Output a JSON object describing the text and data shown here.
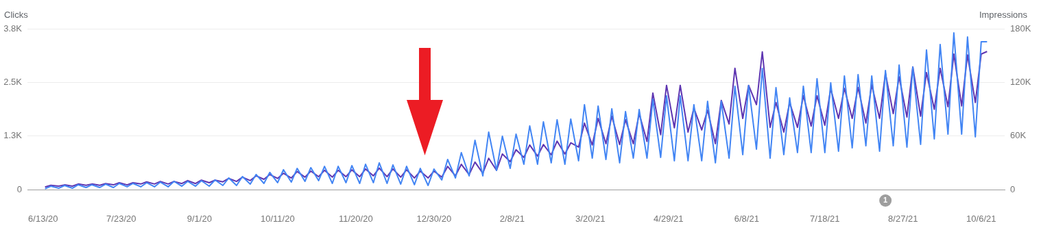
{
  "chart_data": {
    "type": "line",
    "ylabel": "Clicks",
    "y2label": "Impressions",
    "grid": "y",
    "legend": false,
    "x": [
      "2020-06-14",
      "2020-06-17",
      "2020-06-21",
      "2020-06-24",
      "2020-06-28",
      "2020-07-01",
      "2020-07-05",
      "2020-07-08",
      "2020-07-12",
      "2020-07-15",
      "2020-07-19",
      "2020-07-22",
      "2020-07-26",
      "2020-07-29",
      "2020-08-02",
      "2020-08-05",
      "2020-08-09",
      "2020-08-12",
      "2020-08-16",
      "2020-08-19",
      "2020-08-23",
      "2020-08-26",
      "2020-08-30",
      "2020-09-02",
      "2020-09-06",
      "2020-09-09",
      "2020-09-13",
      "2020-09-16",
      "2020-09-20",
      "2020-09-23",
      "2020-09-27",
      "2020-09-30",
      "2020-10-04",
      "2020-10-07",
      "2020-10-11",
      "2020-10-14",
      "2020-10-18",
      "2020-10-21",
      "2020-10-25",
      "2020-10-28",
      "2020-11-01",
      "2020-11-04",
      "2020-11-08",
      "2020-11-11",
      "2020-11-15",
      "2020-11-18",
      "2020-11-22",
      "2020-11-25",
      "2020-11-29",
      "2020-12-02",
      "2020-12-06",
      "2020-12-09",
      "2020-12-13",
      "2020-12-16",
      "2020-12-20",
      "2020-12-23",
      "2020-12-27",
      "2020-12-30",
      "2021-01-03",
      "2021-01-06",
      "2021-01-10",
      "2021-01-13",
      "2021-01-17",
      "2021-01-20",
      "2021-01-24",
      "2021-01-27",
      "2021-01-31",
      "2021-02-03",
      "2021-02-07",
      "2021-02-10",
      "2021-02-14",
      "2021-02-17",
      "2021-02-21",
      "2021-02-24",
      "2021-02-28",
      "2021-03-03",
      "2021-03-07",
      "2021-03-10",
      "2021-03-14",
      "2021-03-17",
      "2021-03-21",
      "2021-03-24",
      "2021-03-28",
      "2021-03-31",
      "2021-04-04",
      "2021-04-07",
      "2021-04-11",
      "2021-04-14",
      "2021-04-18",
      "2021-04-21",
      "2021-04-25",
      "2021-04-28",
      "2021-05-02",
      "2021-05-05",
      "2021-05-09",
      "2021-05-12",
      "2021-05-16",
      "2021-05-19",
      "2021-05-23",
      "2021-05-26",
      "2021-05-30",
      "2021-06-02",
      "2021-06-06",
      "2021-06-09",
      "2021-06-13",
      "2021-06-16",
      "2021-06-20",
      "2021-06-23",
      "2021-06-27",
      "2021-06-30",
      "2021-07-04",
      "2021-07-07",
      "2021-07-11",
      "2021-07-14",
      "2021-07-18",
      "2021-07-21",
      "2021-07-25",
      "2021-07-28",
      "2021-08-01",
      "2021-08-04",
      "2021-08-08",
      "2021-08-11",
      "2021-08-15",
      "2021-08-18",
      "2021-08-22",
      "2021-08-25",
      "2021-08-29",
      "2021-09-01",
      "2021-09-05",
      "2021-09-08",
      "2021-09-12",
      "2021-09-15",
      "2021-09-19",
      "2021-09-22",
      "2021-09-26",
      "2021-09-29",
      "2021-10-03",
      "2021-10-06",
      "2021-10-09"
    ],
    "xlim": [
      "2020-06-05",
      "2021-10-18"
    ],
    "xticks": [
      {
        "value": "2020-06-13",
        "label": "6/13/20"
      },
      {
        "value": "2020-07-23",
        "label": "7/23/20"
      },
      {
        "value": "2020-09-01",
        "label": "9/1/20"
      },
      {
        "value": "2020-10-11",
        "label": "10/11/20"
      },
      {
        "value": "2020-11-20",
        "label": "11/20/20"
      },
      {
        "value": "2020-12-30",
        "label": "12/30/20"
      },
      {
        "value": "2021-02-08",
        "label": "2/8/21"
      },
      {
        "value": "2021-03-20",
        "label": "3/20/21"
      },
      {
        "value": "2021-04-29",
        "label": "4/29/21"
      },
      {
        "value": "2021-06-08",
        "label": "6/8/21"
      },
      {
        "value": "2021-07-18",
        "label": "7/18/21"
      },
      {
        "value": "2021-08-27",
        "label": "8/27/21"
      },
      {
        "value": "2021-10-06",
        "label": "10/6/21"
      }
    ],
    "ylim": [
      0,
      3750
    ],
    "yticks": [
      0,
      {
        "value": 1250,
        "label": "1.3K"
      },
      {
        "value": 2500,
        "label": "2.5K"
      },
      {
        "value": 3750,
        "label": "3.8K"
      }
    ],
    "y2lim": [
      0,
      180000
    ],
    "y2ticks": [
      0,
      {
        "value": 60000,
        "label": "60K"
      },
      {
        "value": 120000,
        "label": "120K"
      },
      {
        "value": 180000,
        "label": "180K"
      }
    ],
    "series": [
      {
        "color": "#4285f4",
        "axis": "y2",
        "values": [
          800,
          3800,
          1500,
          4600,
          1500,
          5400,
          2300,
          5400,
          2300,
          6100,
          2300,
          6900,
          3100,
          6900,
          3100,
          7700,
          3100,
          8400,
          3100,
          9200,
          3800,
          9200,
          3800,
          10000,
          3800,
          10700,
          4600,
          13000,
          4600,
          14600,
          6100,
          16900,
          6900,
          19200,
          7700,
          22200,
          8400,
          23700,
          9200,
          24500,
          10000,
          26000,
          6900,
          26000,
          7700,
          26800,
          6900,
          28300,
          7700,
          29900,
          6900,
          27600,
          6100,
          26000,
          5400,
          23700,
          4600,
          23000,
          10700,
          33700,
          13000,
          41400,
          15300,
          55200,
          15300,
          64300,
          21400,
          59700,
          23700,
          62000,
          28300,
          71200,
          28300,
          75800,
          29900,
          78100,
          28300,
          78900,
          32200,
          95000,
          35200,
          93500,
          33700,
          90400,
          29900,
          87300,
          35200,
          89600,
          35200,
          101100,
          36000,
          104900,
          32200,
          104900,
          32200,
          95000,
          32200,
          98800,
          29900,
          98800,
          35200,
          115700,
          39100,
          116400,
          45200,
          135600,
          35200,
          114100,
          39100,
          102600,
          41400,
          115700,
          41400,
          124100,
          41400,
          119500,
          42900,
          127200,
          46700,
          128700,
          49000,
          127200,
          42900,
          133300,
          49000,
          139400,
          47500,
          137100,
          50600,
          156300,
          56700,
          162400,
          62000,
          175400,
          62000,
          170800,
          59000,
          165500,
          165500
        ]
      },
      {
        "color": "#5e35b1",
        "values": [
          60,
          100,
          80,
          110,
          80,
          130,
          100,
          130,
          100,
          140,
          110,
          160,
          110,
          160,
          130,
          180,
          130,
          190,
          130,
          190,
          140,
          210,
          140,
          220,
          160,
          220,
          180,
          260,
          190,
          290,
          210,
          320,
          240,
          350,
          260,
          380,
          270,
          420,
          290,
          430,
          300,
          450,
          290,
          450,
          300,
          460,
          300,
          480,
          320,
          500,
          300,
          480,
          290,
          460,
          270,
          430,
          270,
          430,
          290,
          540,
          320,
          590,
          350,
          640,
          380,
          730,
          450,
          830,
          650,
          930,
          750,
          1040,
          780,
          1050,
          810,
          1130,
          830,
          1090,
          990,
          1550,
          1040,
          1660,
          1070,
          1710,
          1050,
          1630,
          1070,
          1770,
          1120,
          2250,
          1280,
          2430,
          1440,
          2430,
          1340,
          1900,
          1390,
          1850,
          1070,
          2080,
          1530,
          2830,
          1660,
          2430,
          1980,
          3210,
          1450,
          2030,
          1340,
          2030,
          1450,
          2190,
          1480,
          2190,
          1500,
          2350,
          1660,
          2360,
          1660,
          2380,
          1550,
          2440,
          1660,
          2710,
          1770,
          2630,
          1690,
          2860,
          1710,
          2730,
          1870,
          2830,
          1930,
          3160,
          1950,
          3140,
          2030,
          3160,
          3220
        ]
      }
    ],
    "annotations": [
      "1"
    ]
  }
}
